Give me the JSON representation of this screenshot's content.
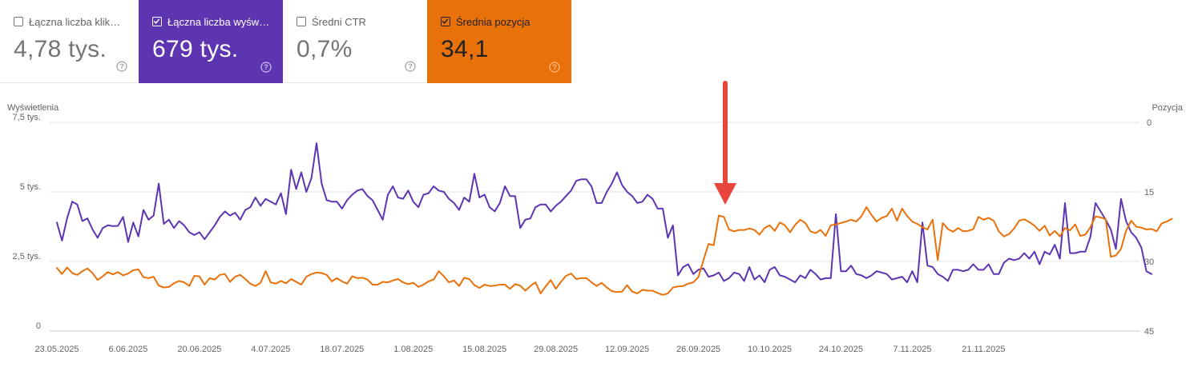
{
  "metrics": [
    {
      "label": "Łączna liczba kliknięć",
      "value": "4,78 tys.",
      "checked": false,
      "color": "#ffffff"
    },
    {
      "label": "Łączna liczba wyświetleń",
      "value": "679 tys.",
      "checked": true,
      "color": "#5e35b1"
    },
    {
      "label": "Średni CTR",
      "value": "0,7%",
      "checked": false,
      "color": "#ffffff"
    },
    {
      "label": "Średnia pozycja",
      "value": "34,1",
      "checked": true,
      "color": "#e8710a"
    }
  ],
  "icons": {
    "help": "help-circle-icon",
    "checkbox": "checkbox-icon",
    "arrow": "red-arrow-down-icon"
  },
  "chart_data": {
    "type": "line",
    "x_start": "23.05.2025",
    "x_end": "22.11.2025",
    "x_ticks": [
      "23.05.2025",
      "6.06.2025",
      "20.06.2025",
      "4.07.2025",
      "18.07.2025",
      "1.08.2025",
      "15.08.2025",
      "29.08.2025",
      "12.09.2025",
      "26.09.2025",
      "10.10.2025",
      "24.10.2025",
      "7.11.2025",
      "21.11.2025"
    ],
    "ylabel_left": "Wyświetlenia",
    "ylabel_right": "Pozycja",
    "y_left_ticks": [
      "0",
      "2,5 tys.",
      "5 tys.",
      "7,5 tys."
    ],
    "y_left_range": [
      0,
      7500
    ],
    "y_right_ticks": [
      "0",
      "15",
      "30",
      "45"
    ],
    "y_right_range": [
      0,
      45
    ],
    "y_right_inverted": true,
    "grid": true,
    "series": [
      {
        "name": "Wyświetlenia",
        "axis": "left",
        "color": "#5e35b1",
        "values": [
          3900,
          3250,
          4050,
          4650,
          4550,
          3950,
          4050,
          3650,
          3350,
          3700,
          3800,
          3770,
          3780,
          4100,
          3200,
          3900,
          3400,
          4350,
          4000,
          4150,
          5300,
          3850,
          4000,
          3700,
          3950,
          3800,
          3550,
          3450,
          3550,
          3300,
          3550,
          3800,
          4100,
          4300,
          4150,
          4250,
          4000,
          4350,
          4450,
          4800,
          4500,
          4750,
          4650,
          4550,
          4950,
          4200,
          5800,
          5100,
          5700,
          5000,
          5500,
          6750,
          5300,
          4700,
          4650,
          4650,
          4400,
          4700,
          4900,
          5050,
          5100,
          4850,
          4700,
          4350,
          4000,
          4900,
          5200,
          4800,
          4750,
          5050,
          4650,
          4450,
          4900,
          4950,
          5200,
          5050,
          5000,
          4750,
          4600,
          4350,
          4800,
          4650,
          5650,
          4800,
          4900,
          4450,
          4300,
          4600,
          5200,
          4850,
          4850,
          3700,
          4000,
          4050,
          4450,
          4550,
          4550,
          4300,
          4500,
          4650,
          4850,
          5050,
          5400,
          5450,
          5450,
          5200,
          4600,
          4600,
          5000,
          5300,
          5700,
          5250,
          5000,
          4850,
          4600,
          4650,
          4900,
          4750,
          4400,
          4400,
          3350,
          3800,
          2000,
          2300,
          2400,
          2050,
          2200,
          2250,
          1950,
          2000,
          2100,
          1800,
          1900,
          2100,
          2050,
          1800,
          2300,
          1850,
          2000,
          1750,
          2200,
          2300,
          2000,
          1950,
          1850,
          1750,
          2000,
          1900,
          2200,
          2050,
          1850,
          1900,
          1900,
          4200,
          2150,
          2150,
          2350,
          2050,
          2000,
          1900,
          2000,
          2150,
          2100,
          2050,
          1850,
          1900,
          1950,
          1750,
          2150,
          1750,
          3900,
          2350,
          2300,
          2050,
          1950,
          1800,
          2200,
          2200,
          2150,
          2200,
          2400,
          2200,
          2200,
          2400,
          2050,
          2050,
          2450,
          2600,
          2550,
          2600,
          2800,
          2600,
          2850,
          2400,
          2850,
          2750,
          3100,
          2600,
          4600,
          2800,
          2800,
          2850,
          2850,
          3400,
          4600,
          4300,
          4000,
          3650,
          2950,
          4750,
          3950,
          3550,
          3350,
          3000,
          2150,
          2050
        ]
      },
      {
        "name": "Pozycja",
        "axis": "right",
        "color": "#e8710a",
        "values": [
          31.4,
          32.7,
          31.3,
          32.5,
          32.9,
          32.1,
          31.5,
          32.5,
          34.0,
          33.2,
          32.3,
          32.8,
          32.3,
          33.0,
          32.6,
          31.9,
          31.7,
          33.4,
          33.6,
          33.3,
          35.2,
          35.6,
          35.5,
          34.7,
          34.2,
          34.5,
          35.3,
          33.1,
          33.2,
          35.0,
          33.6,
          33.9,
          32.9,
          32.7,
          34.4,
          33.3,
          32.9,
          33.8,
          34.8,
          35.3,
          34.6,
          32.1,
          34.5,
          34.8,
          34.2,
          34.7,
          33.8,
          34.4,
          35.0,
          33.3,
          32.7,
          32.4,
          32.5,
          32.9,
          34.3,
          33.6,
          34.3,
          34.8,
          33.2,
          33.6,
          33.5,
          33.9,
          35.0,
          35.0,
          34.4,
          34.5,
          34.1,
          33.8,
          34.5,
          34.9,
          34.6,
          35.5,
          35.0,
          34.3,
          33.9,
          32.1,
          33.2,
          34.5,
          34.1,
          35.3,
          33.5,
          33.8,
          35.1,
          35.7,
          35.0,
          35.3,
          35.2,
          35.0,
          35.0,
          35.9,
          34.9,
          35.2,
          36.3,
          35.3,
          34.5,
          36.9,
          35.4,
          34.0,
          35.9,
          34.4,
          33.1,
          32.6,
          33.8,
          33.6,
          33.6,
          34.5,
          35.3,
          34.6,
          35.6,
          36.4,
          36.6,
          36.5,
          35.1,
          36.5,
          36.9,
          36.1,
          36.3,
          36.3,
          36.8,
          37.2,
          36.9,
          35.6,
          35.4,
          35.3,
          34.8,
          34.5,
          33.4,
          29.7,
          26.2,
          26.5,
          20.1,
          20.4,
          23.1,
          23.5,
          23.2,
          23.2,
          22.9,
          23.2,
          24.2,
          22.8,
          22.2,
          23.4,
          21.6,
          22.2,
          23.7,
          22.1,
          21.0,
          21.7,
          23.5,
          23.9,
          23.2,
          24.5,
          22.2,
          22.0,
          21.7,
          21.4,
          21.0,
          21.4,
          20.3,
          18.3,
          20.0,
          21.4,
          20.6,
          20.2,
          18.6,
          21.2,
          18.6,
          20.2,
          21.4,
          21.9,
          22.6,
          23.1,
          21.0,
          29.7,
          21.7,
          23.0,
          23.6,
          22.8,
          23.5,
          23.4,
          23.0,
          20.4,
          21.0,
          20.6,
          21.2,
          23.5,
          24.6,
          24.1,
          22.9,
          21.2,
          20.9,
          21.5,
          22.3,
          23.4,
          22.3,
          24.4,
          23.4,
          24.6,
          22.8,
          23.3,
          22.0,
          24.5,
          24.2,
          22.6,
          20.3,
          20.5,
          20.9,
          29.0,
          28.7,
          27.3,
          23.4,
          21.2,
          22.5,
          22.7,
          23.1,
          23.0,
          23.5,
          21.8,
          21.4,
          20.8
        ]
      }
    ]
  }
}
